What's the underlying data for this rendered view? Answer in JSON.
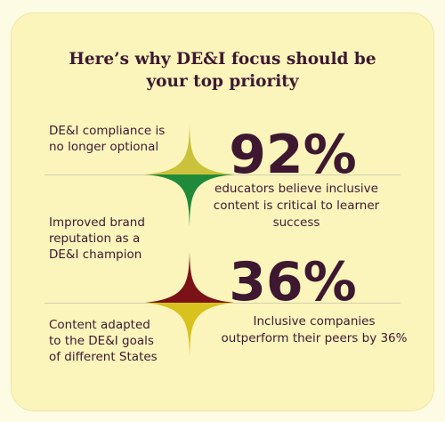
{
  "title": {
    "line1": "Here’s why DE&I focus should be",
    "line2": "your top priority"
  },
  "reasons": [
    {
      "line1": "DE&I compliance is",
      "line2": "no longer optional",
      "line3": ""
    },
    {
      "line1": "Improved brand",
      "line2": "reputation as a",
      "line3": "DE&I champion"
    },
    {
      "line1": "Content adapted",
      "line2": "to the DE&I goals",
      "line3": "of different States"
    }
  ],
  "stats": [
    {
      "value": "92%",
      "line1": "educators believe inclusive",
      "line2": "content is critical to learner",
      "line3": "success"
    },
    {
      "value": "36%",
      "line1": "Inclusive companies",
      "line2": "outperform their peers by 36%"
    }
  ],
  "colors": {
    "background": "#fdfbe3",
    "card": "#fbf5bc",
    "text": "#3d1830",
    "star1_top": "#c9c23a",
    "star1_bottom": "#1f8a3a",
    "star2_top": "#7a1218",
    "star2_bottom": "#d8c21e"
  }
}
